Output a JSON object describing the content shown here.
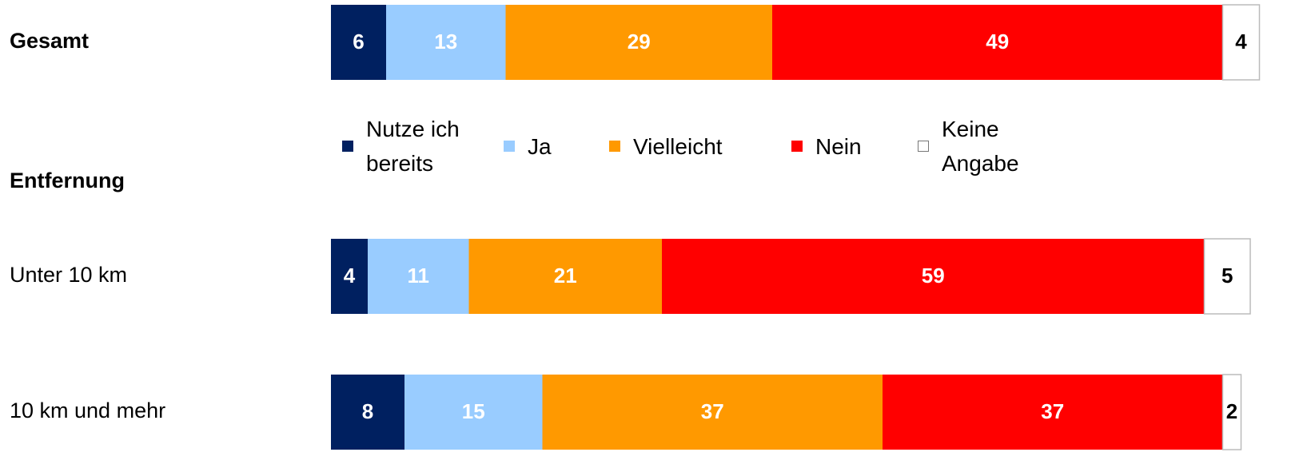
{
  "chart_data": {
    "type": "stacked-bar-horizontal",
    "group_label": "Entfernung",
    "categories": [
      "Gesamt",
      "Unter 10 km",
      "10 km und mehr"
    ],
    "series": [
      {
        "name": "Nutze ich bereits",
        "color": "#002060",
        "label_color": "#ffffff",
        "values": [
          6,
          4,
          8
        ]
      },
      {
        "name": "Ja",
        "color": "#99ccff",
        "label_color": "#ffffff",
        "values": [
          13,
          11,
          15
        ]
      },
      {
        "name": "Vielleicht",
        "color": "#ff9900",
        "label_color": "#ffffff",
        "values": [
          29,
          21,
          37
        ]
      },
      {
        "name": "Nein",
        "color": "#ff0000",
        "label_color": "#ffffff",
        "values": [
          49,
          59,
          37
        ]
      },
      {
        "name": "Keine Angabe",
        "color": "#ffffff",
        "label_color": "#000000",
        "values": [
          4,
          5,
          2
        ]
      }
    ],
    "xlim": [
      0,
      100
    ]
  }
}
